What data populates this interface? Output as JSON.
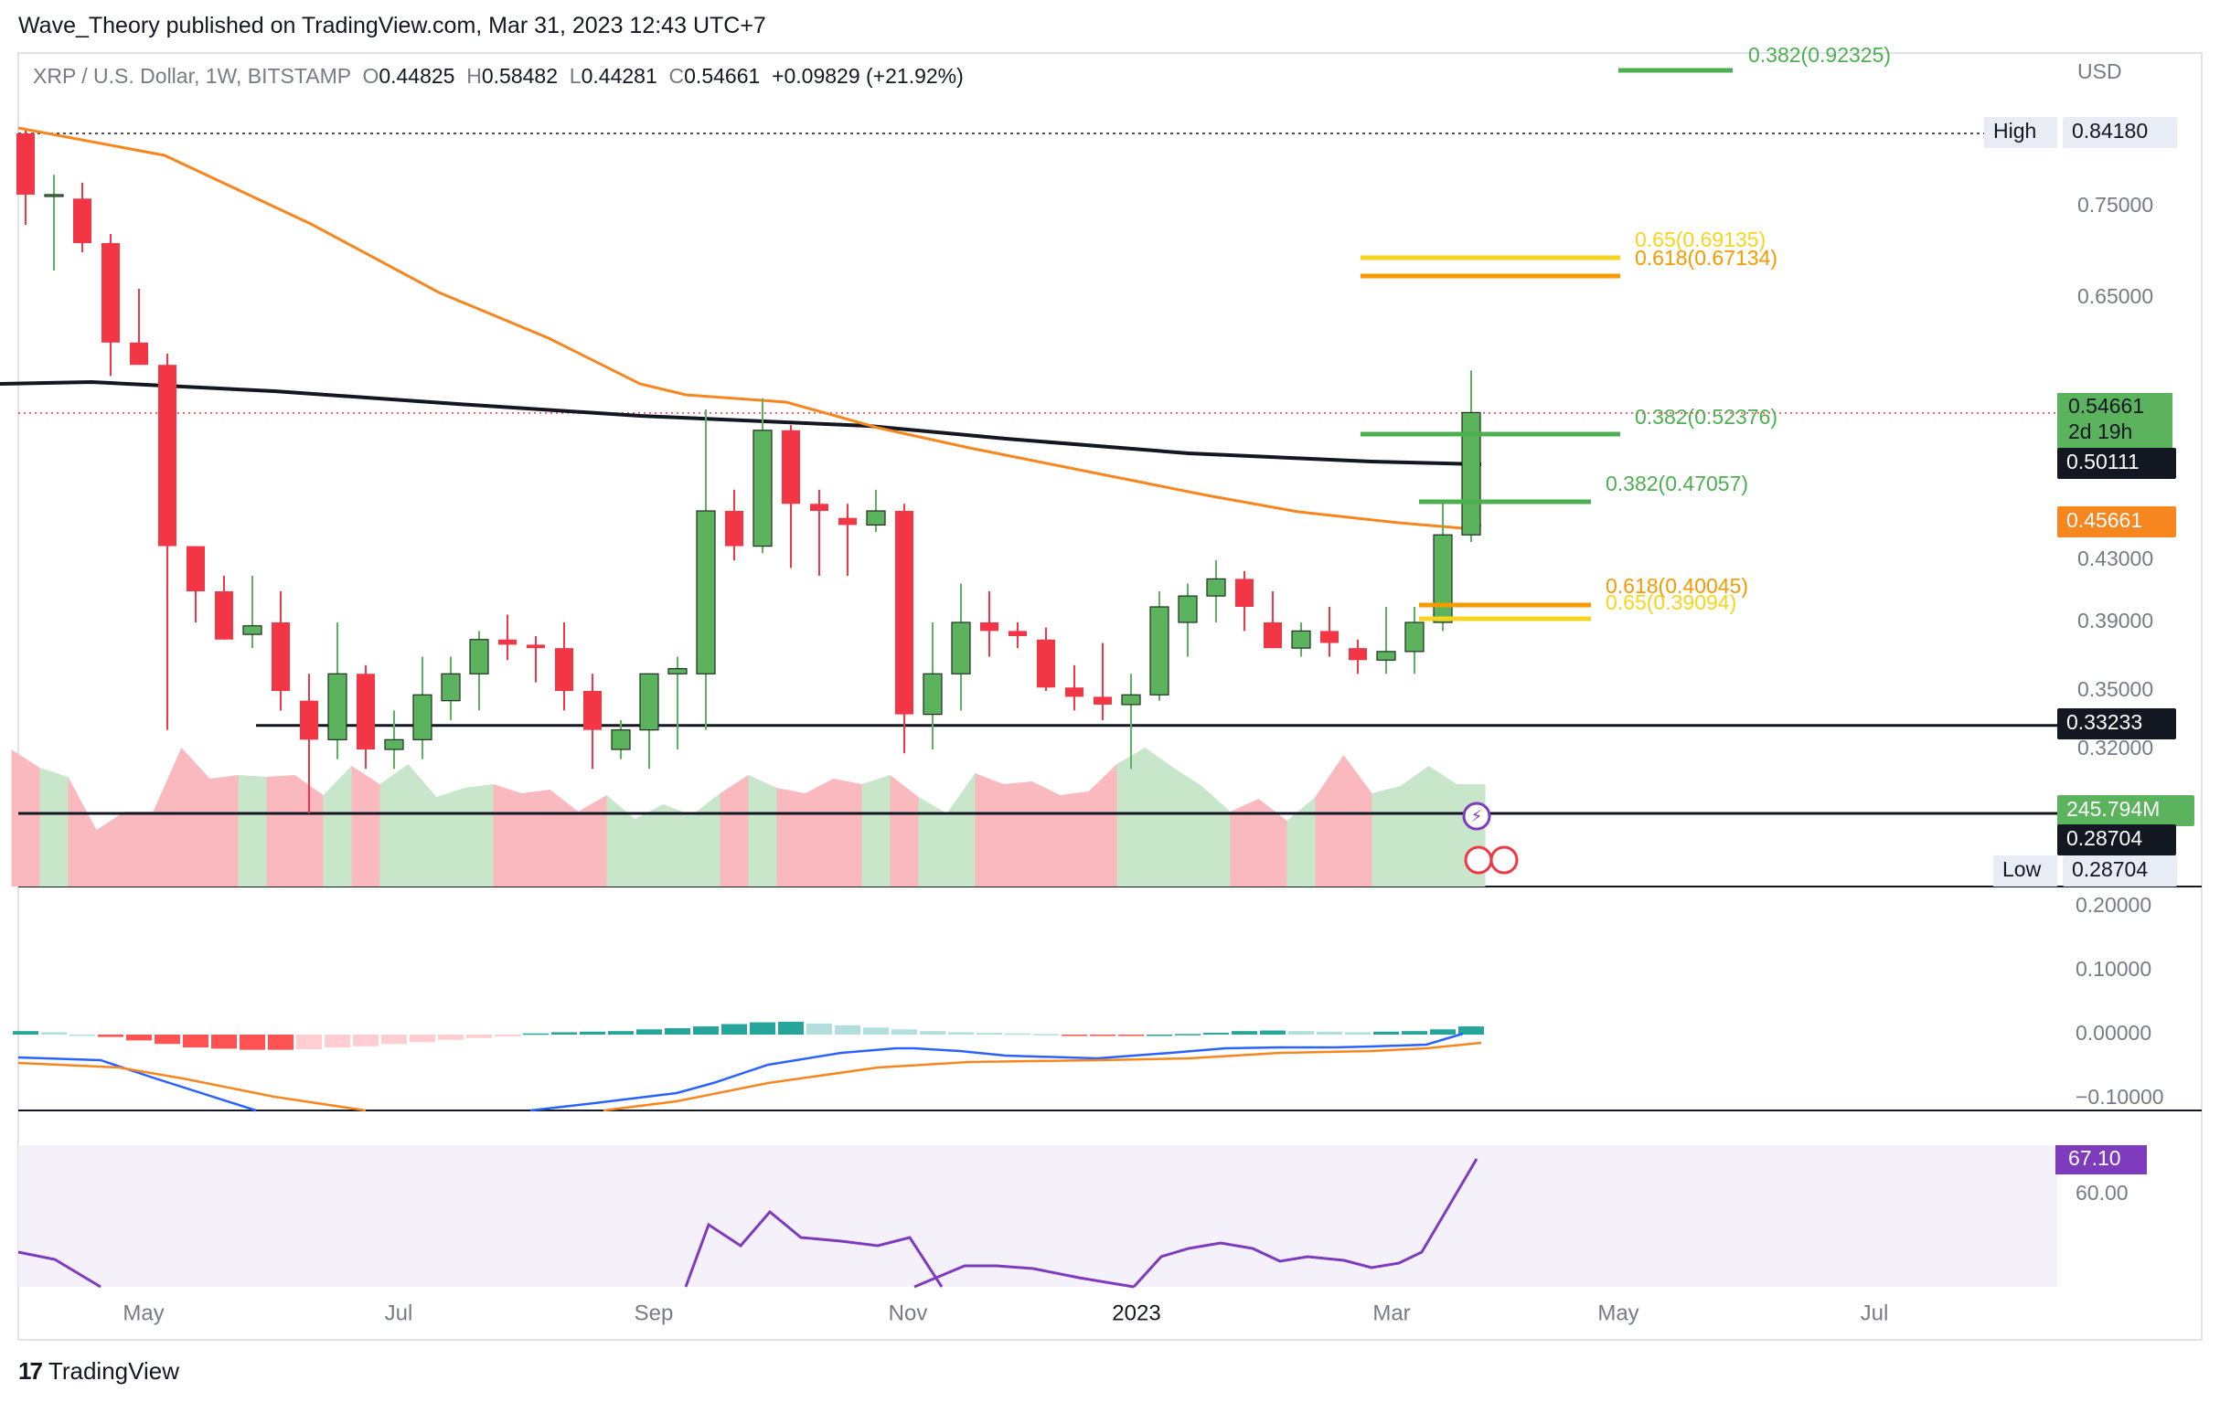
{
  "header": {
    "caption": "Wave_Theory published on TradingView.com, Mar 31, 2023 12:43 UTC+7",
    "symbol": "XRP / U.S. Dollar, 1W, BITSTAMP",
    "o_label": "O",
    "o_value": "0.44825",
    "h_label": "H",
    "h_value": "0.58482",
    "l_label": "L",
    "l_value": "0.44281",
    "c_label": "C",
    "c_value": "0.54661",
    "change": "+0.09829 (+21.92%)"
  },
  "footer": {
    "brand": "TradingView"
  },
  "colors": {
    "up": "#5bb35e",
    "down": "#f23645",
    "ema_orange": "#f7861e",
    "sma_black": "#131722",
    "fib_green": "#4caf50",
    "fib_orange": "#f59a00",
    "fib_yellow": "#f7d51d",
    "vol_up": "#c8e6c9",
    "vol_down": "#f9b9bf",
    "macd_line": "#2962ff",
    "macd_signal": "#f7861e",
    "rsi": "#7e3bbd"
  },
  "chart_data": {
    "type": "candlestick",
    "title": "XRP / U.S. Dollar, 1W, BITSTAMP",
    "price_axis": {
      "label": "USD",
      "ticks": [
        "0.75000",
        "0.65000",
        "0.43000",
        "0.39000",
        "0.35000",
        "0.32000"
      ],
      "tick_values": [
        0.75,
        0.65,
        0.43,
        0.39,
        0.35,
        0.32
      ],
      "high_label": "High",
      "high_value": "0.84180",
      "low_label": "Low",
      "low_value": "0.28704",
      "last_price": "0.54661",
      "countdown": "2d 19h",
      "sma_value": "0.50111",
      "ema_value": "0.45661",
      "support_value": "0.33233",
      "lower_support_value": "0.28704",
      "volume_value": "245.794M"
    },
    "time_axis": [
      "May",
      "Jul",
      "Sep",
      "Nov",
      "2023",
      "Mar",
      "May",
      "Jul"
    ],
    "candles": [
      {
        "o": 0.842,
        "h": 0.845,
        "l": 0.73,
        "c": 0.765
      },
      {
        "o": 0.765,
        "h": 0.79,
        "l": 0.68,
        "c": 0.765
      },
      {
        "o": 0.76,
        "h": 0.78,
        "l": 0.7,
        "c": 0.71
      },
      {
        "o": 0.71,
        "h": 0.72,
        "l": 0.58,
        "c": 0.61
      },
      {
        "o": 0.61,
        "h": 0.66,
        "l": 0.59,
        "c": 0.59
      },
      {
        "o": 0.59,
        "h": 0.6,
        "l": 0.33,
        "c": 0.44
      },
      {
        "o": 0.44,
        "h": 0.44,
        "l": 0.39,
        "c": 0.41
      },
      {
        "o": 0.41,
        "h": 0.42,
        "l": 0.38,
        "c": 0.38
      },
      {
        "o": 0.383,
        "h": 0.42,
        "l": 0.375,
        "c": 0.388
      },
      {
        "o": 0.39,
        "h": 0.41,
        "l": 0.34,
        "c": 0.35
      },
      {
        "o": 0.345,
        "h": 0.36,
        "l": 0.287,
        "c": 0.325
      },
      {
        "o": 0.325,
        "h": 0.39,
        "l": 0.315,
        "c": 0.36
      },
      {
        "o": 0.36,
        "h": 0.365,
        "l": 0.31,
        "c": 0.32
      },
      {
        "o": 0.32,
        "h": 0.34,
        "l": 0.31,
        "c": 0.325
      },
      {
        "o": 0.325,
        "h": 0.37,
        "l": 0.315,
        "c": 0.348
      },
      {
        "o": 0.345,
        "h": 0.37,
        "l": 0.335,
        "c": 0.36
      },
      {
        "o": 0.36,
        "h": 0.385,
        "l": 0.34,
        "c": 0.38
      },
      {
        "o": 0.38,
        "h": 0.395,
        "l": 0.368,
        "c": 0.377
      },
      {
        "o": 0.377,
        "h": 0.382,
        "l": 0.355,
        "c": 0.375
      },
      {
        "o": 0.375,
        "h": 0.39,
        "l": 0.34,
        "c": 0.35
      },
      {
        "o": 0.35,
        "h": 0.36,
        "l": 0.31,
        "c": 0.33
      },
      {
        "o": 0.32,
        "h": 0.335,
        "l": 0.315,
        "c": 0.33
      },
      {
        "o": 0.33,
        "h": 0.36,
        "l": 0.31,
        "c": 0.36
      },
      {
        "o": 0.36,
        "h": 0.37,
        "l": 0.32,
        "c": 0.363
      },
      {
        "o": 0.36,
        "h": 0.55,
        "l": 0.33,
        "c": 0.465
      },
      {
        "o": 0.465,
        "h": 0.48,
        "l": 0.43,
        "c": 0.44
      },
      {
        "o": 0.44,
        "h": 0.56,
        "l": 0.435,
        "c": 0.53
      },
      {
        "o": 0.53,
        "h": 0.535,
        "l": 0.425,
        "c": 0.47
      },
      {
        "o": 0.47,
        "h": 0.48,
        "l": 0.42,
        "c": 0.465
      },
      {
        "o": 0.46,
        "h": 0.47,
        "l": 0.42,
        "c": 0.455
      },
      {
        "o": 0.455,
        "h": 0.48,
        "l": 0.45,
        "c": 0.465
      },
      {
        "o": 0.465,
        "h": 0.47,
        "l": 0.318,
        "c": 0.338
      },
      {
        "o": 0.338,
        "h": 0.39,
        "l": 0.32,
        "c": 0.36
      },
      {
        "o": 0.36,
        "h": 0.415,
        "l": 0.34,
        "c": 0.39
      },
      {
        "o": 0.39,
        "h": 0.41,
        "l": 0.37,
        "c": 0.385
      },
      {
        "o": 0.385,
        "h": 0.39,
        "l": 0.375,
        "c": 0.382
      },
      {
        "o": 0.38,
        "h": 0.387,
        "l": 0.35,
        "c": 0.352
      },
      {
        "o": 0.352,
        "h": 0.365,
        "l": 0.34,
        "c": 0.347
      },
      {
        "o": 0.347,
        "h": 0.378,
        "l": 0.335,
        "c": 0.343
      },
      {
        "o": 0.343,
        "h": 0.36,
        "l": 0.31,
        "c": 0.348
      },
      {
        "o": 0.348,
        "h": 0.41,
        "l": 0.345,
        "c": 0.4
      },
      {
        "o": 0.39,
        "h": 0.415,
        "l": 0.37,
        "c": 0.407
      },
      {
        "o": 0.407,
        "h": 0.43,
        "l": 0.39,
        "c": 0.418
      },
      {
        "o": 0.418,
        "h": 0.423,
        "l": 0.385,
        "c": 0.4
      },
      {
        "o": 0.39,
        "h": 0.41,
        "l": 0.375,
        "c": 0.375
      },
      {
        "o": 0.375,
        "h": 0.39,
        "l": 0.37,
        "c": 0.385
      },
      {
        "o": 0.385,
        "h": 0.4,
        "l": 0.37,
        "c": 0.378
      },
      {
        "o": 0.375,
        "h": 0.38,
        "l": 0.36,
        "c": 0.368
      },
      {
        "o": 0.368,
        "h": 0.4,
        "l": 0.36,
        "c": 0.373
      },
      {
        "o": 0.373,
        "h": 0.4,
        "l": 0.36,
        "c": 0.39
      },
      {
        "o": 0.39,
        "h": 0.472,
        "l": 0.385,
        "c": 0.448
      },
      {
        "o": 0.448,
        "h": 0.585,
        "l": 0.443,
        "c": 0.547
      }
    ],
    "ema_label": "0.45661",
    "fib_levels": [
      {
        "label": "0.382(0.92325)",
        "color": "#4caf50"
      },
      {
        "label": "0.65(0.69135)",
        "color": "#f7d51d"
      },
      {
        "label": "0.618(0.67134)",
        "color": "#f59a00"
      },
      {
        "label": "0.382(0.52376)",
        "color": "#4caf50"
      },
      {
        "label": "0.382(0.47057)",
        "color": "#4caf50"
      },
      {
        "label": "0.618(0.40045)",
        "color": "#f59a00"
      },
      {
        "label": "0.65(0.39094)",
        "color": "#f7d51d"
      }
    ],
    "macd_axis": [
      "0.20000",
      "0.10000",
      "0.00000",
      "−0.10000"
    ],
    "rsi_axis": [
      "60.00"
    ],
    "rsi_value": "67.10"
  }
}
